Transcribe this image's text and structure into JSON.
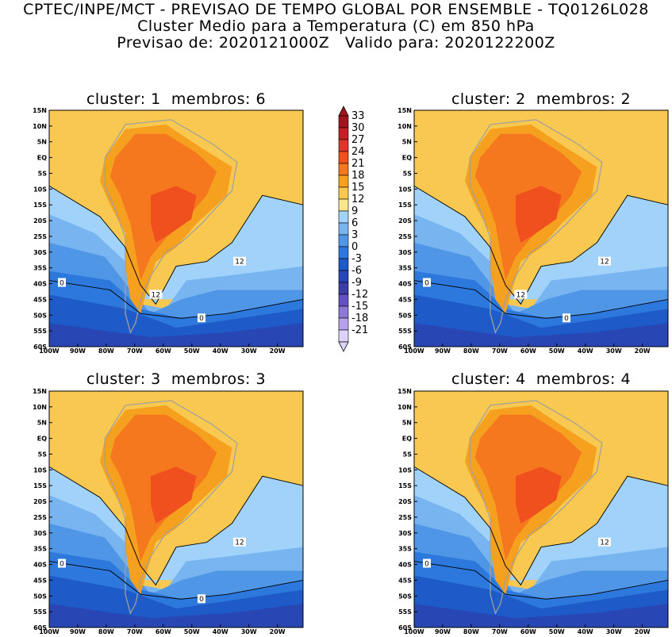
{
  "header": {
    "line1": "CPTEC/INPE/MCT - PREVISAO DE TEMPO GLOBAL POR ENSEMBLE - TQ0126L028",
    "line2": "Cluster Medio para a Temperatura (C) em 850 hPa",
    "line3": "Previsao de: 2020121000Z   Valido para: 2020122200Z"
  },
  "panels": [
    {
      "title": "cluster: 1  membros: 6",
      "labels12": [
        "12",
        "12"
      ],
      "labels0": [
        "0",
        "0"
      ]
    },
    {
      "title": "cluster: 2  membros: 2",
      "labels12": [
        "12",
        "12"
      ],
      "labels0": [
        "0",
        "0"
      ]
    },
    {
      "title": "cluster: 3  membros: 3",
      "labels12": [
        "12"
      ],
      "labels0": [
        "0",
        "0"
      ]
    },
    {
      "title": "cluster: 4  membros: 4",
      "labels12": [
        "12"
      ],
      "labels0": [
        "0"
      ]
    }
  ],
  "axes": {
    "lat_ticks": [
      "15N",
      "10N",
      "5N",
      "EQ",
      "5S",
      "10S",
      "15S",
      "20S",
      "25S",
      "30S",
      "35S",
      "40S",
      "45S",
      "50S",
      "55S",
      "60S"
    ],
    "lon_ticks": [
      "100W",
      "90W",
      "80W",
      "70W",
      "60W",
      "50W",
      "40W",
      "30W",
      "20W"
    ]
  },
  "colorbar": {
    "labels": [
      "33",
      "30",
      "27",
      "24",
      "21",
      "18",
      "15",
      "12",
      "9",
      "6",
      "3",
      "0",
      "-3",
      "-6",
      "-9",
      "-12",
      "-15",
      "-18",
      "-21"
    ],
    "colors_top_to_bottom": [
      "#a0141e",
      "#c81e28",
      "#e6322d",
      "#f0501e",
      "#f5781e",
      "#f5a01e",
      "#f8c850",
      "#fae68c",
      "#a0d2fa",
      "#78b4f0",
      "#5096e6",
      "#2d78dc",
      "#1e5ac8",
      "#2846b4",
      "#3c3ca5",
      "#6450c3",
      "#8c78d7",
      "#b4a0eb",
      "#dcd2fa"
    ]
  }
}
